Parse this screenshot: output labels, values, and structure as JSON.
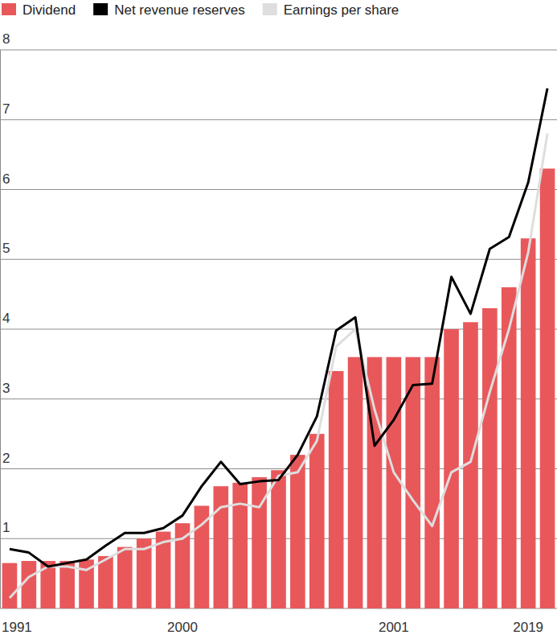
{
  "chart_data": {
    "type": "bar",
    "categories": [
      "1991",
      null,
      null,
      null,
      null,
      null,
      null,
      null,
      null,
      "2000",
      null,
      null,
      null,
      null,
      null,
      null,
      null,
      null,
      null,
      null,
      "2001",
      null,
      null,
      null,
      null,
      null,
      null,
      "2019",
      null
    ],
    "series": [
      {
        "name": "Dividend",
        "type": "bar",
        "color": "#e8585b",
        "values": [
          0.65,
          0.68,
          0.68,
          0.68,
          0.7,
          0.75,
          0.88,
          1.0,
          1.1,
          1.22,
          1.47,
          1.75,
          1.8,
          1.88,
          1.98,
          2.2,
          2.5,
          3.4,
          3.6,
          3.6,
          3.6,
          3.6,
          3.6,
          4.0,
          4.1,
          4.3,
          4.6,
          5.3,
          6.3
        ]
      },
      {
        "name": "Net revenue reserves",
        "type": "line",
        "color": "#000000",
        "values": [
          0.85,
          0.8,
          0.6,
          0.65,
          0.7,
          0.9,
          1.08,
          1.08,
          1.15,
          1.33,
          1.75,
          2.1,
          1.78,
          1.82,
          1.84,
          2.2,
          2.75,
          3.98,
          4.17,
          2.33,
          2.7,
          3.2,
          3.22,
          4.75,
          4.22,
          5.15,
          5.32,
          6.1,
          7.45
        ]
      },
      {
        "name": "Earnings per share",
        "type": "line",
        "color": "#dedede",
        "values": [
          0.15,
          0.45,
          0.6,
          0.6,
          0.55,
          0.7,
          0.85,
          0.85,
          0.95,
          1.0,
          1.2,
          1.45,
          1.5,
          1.45,
          1.9,
          1.95,
          2.4,
          3.75,
          4.0,
          2.85,
          1.95,
          1.55,
          1.18,
          1.95,
          2.1,
          3.1,
          4.0,
          5.1,
          6.8
        ]
      }
    ],
    "ylim": [
      0,
      8
    ],
    "yticks": [
      1,
      2,
      3,
      4,
      5,
      6,
      7,
      8
    ],
    "grid": true,
    "legend": "top"
  }
}
